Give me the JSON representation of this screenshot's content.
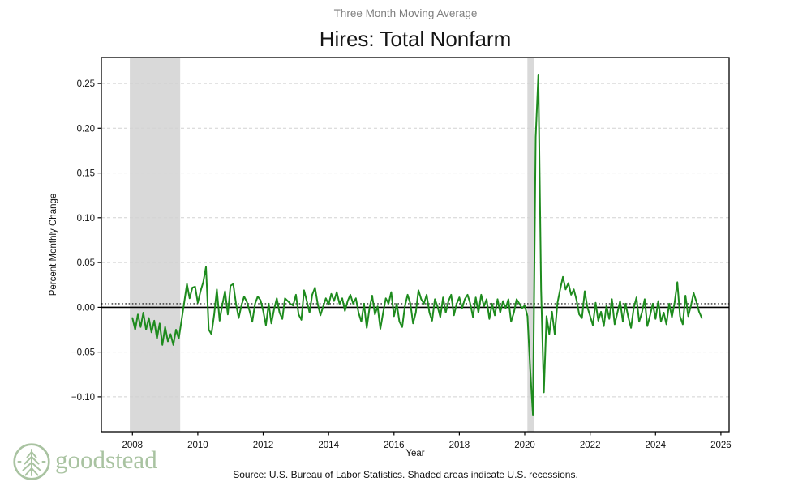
{
  "header": {
    "suptitle": "Three Month Moving Average",
    "title": "Hires: Total Nonfarm"
  },
  "footer": {
    "source": "Source: U.S. Bureau of Labor Statistics. Shaded areas indicate U.S. recessions.",
    "brand": "goodstead"
  },
  "colors": {
    "background": "#ffffff",
    "line_green": "#1e8b1e",
    "band_gray": "#d9d9d9",
    "grid_gray": "#d2d2d2",
    "text_color": "#111111",
    "muted_text": "#7f7f7f",
    "brand_green": "#a9c3a1"
  },
  "chart_data": {
    "type": "line",
    "title": "Hires: Total Nonfarm",
    "subtitle": "Three Month Moving Average",
    "xlabel": "Year",
    "ylabel": "Percent Monthly Change",
    "xlim": [
      2007.05,
      2026.25
    ],
    "ylim": [
      -0.139,
      0.279
    ],
    "x_ticks": [
      2008,
      2010,
      2012,
      2014,
      2016,
      2018,
      2020,
      2022,
      2024,
      2026
    ],
    "x_tick_labels": [
      "2008",
      "2010",
      "2012",
      "2014",
      "2016",
      "2018",
      "2020",
      "2022",
      "2024",
      "2026"
    ],
    "y_ticks": [
      -0.1,
      -0.05,
      0.0,
      0.05,
      0.1,
      0.15,
      0.2,
      0.25
    ],
    "y_tick_labels": [
      "−0.10",
      "−0.05",
      "0.00",
      "0.05",
      "0.10",
      "0.15",
      "0.20",
      "0.25"
    ],
    "grid": "horizontal-dashed",
    "legend": "none",
    "line_color": "#1e8b1e",
    "zero_line": 0.0,
    "dotted_reference_line": 0.004,
    "recessions": [
      {
        "start": 2007.92,
        "end": 2009.46
      },
      {
        "start": 2020.08,
        "end": 2020.29
      }
    ],
    "series": [
      {
        "name": "Hires: Total Nonfarm (3-month moving average, percent monthly change)",
        "x_start": 2008.0,
        "x_step": 0.0833333,
        "values": [
          -0.012,
          -0.025,
          -0.008,
          -0.022,
          -0.006,
          -0.025,
          -0.012,
          -0.028,
          -0.015,
          -0.035,
          -0.018,
          -0.042,
          -0.022,
          -0.038,
          -0.03,
          -0.042,
          -0.025,
          -0.035,
          -0.015,
          0.005,
          0.026,
          0.01,
          0.022,
          0.023,
          0.005,
          0.018,
          0.028,
          0.045,
          -0.025,
          -0.03,
          -0.008,
          0.02,
          -0.015,
          0.003,
          0.018,
          -0.008,
          0.024,
          0.026,
          0.004,
          -0.012,
          0.002,
          0.012,
          0.006,
          -0.004,
          -0.016,
          0.004,
          0.012,
          0.008,
          -0.004,
          -0.02,
          0.004,
          -0.018,
          -0.002,
          0.01,
          -0.006,
          -0.013,
          0.01,
          0.007,
          0.004,
          0.002,
          0.014,
          -0.008,
          -0.014,
          0.019,
          0.007,
          -0.006,
          0.014,
          0.022,
          0.004,
          -0.009,
          0.001,
          0.01,
          0.003,
          0.015,
          0.007,
          0.017,
          0.004,
          0.01,
          -0.004,
          0.007,
          0.014,
          0.004,
          0.01,
          -0.006,
          -0.016,
          0.004,
          -0.023,
          -0.001,
          0.013,
          -0.008,
          0.001,
          -0.024,
          -0.006,
          0.01,
          0.004,
          0.017,
          -0.01,
          0.004,
          -0.016,
          -0.022,
          0.001,
          0.014,
          0.004,
          -0.018,
          -0.006,
          0.019,
          0.009,
          0.004,
          0.014,
          -0.006,
          -0.015,
          0.009,
          0.001,
          -0.011,
          0.011,
          -0.006,
          0.007,
          0.014,
          -0.009,
          0.004,
          0.011,
          -0.001,
          0.009,
          0.014,
          0.004,
          -0.011,
          0.011,
          -0.006,
          0.014,
          0.001,
          0.009,
          -0.013,
          0.004,
          -0.009,
          0.009,
          -0.006,
          0.007,
          -0.001,
          0.009,
          -0.016,
          -0.006,
          0.009,
          0.004,
          -0.001,
          0.002,
          -0.01,
          -0.07,
          -0.12,
          0.19,
          0.26,
          0.02,
          -0.095,
          -0.01,
          -0.03,
          -0.005,
          -0.03,
          0.005,
          0.02,
          0.034,
          0.02,
          0.027,
          0.014,
          0.02,
          0.008,
          -0.008,
          -0.012,
          0.018,
          0.0,
          -0.01,
          -0.02,
          0.005,
          -0.015,
          -0.005,
          -0.021,
          0.002,
          -0.013,
          0.009,
          -0.019,
          -0.006,
          0.007,
          -0.016,
          0.004,
          -0.011,
          -0.023,
          -0.001,
          0.011,
          -0.016,
          -0.006,
          0.009,
          -0.021,
          -0.009,
          0.004,
          -0.013,
          0.007,
          -0.016,
          -0.006,
          -0.019,
          0.004,
          -0.011,
          0.005,
          0.028,
          -0.01,
          -0.019,
          0.013,
          -0.01,
          0.002,
          0.016,
          0.006,
          -0.005,
          -0.012
        ]
      }
    ]
  }
}
